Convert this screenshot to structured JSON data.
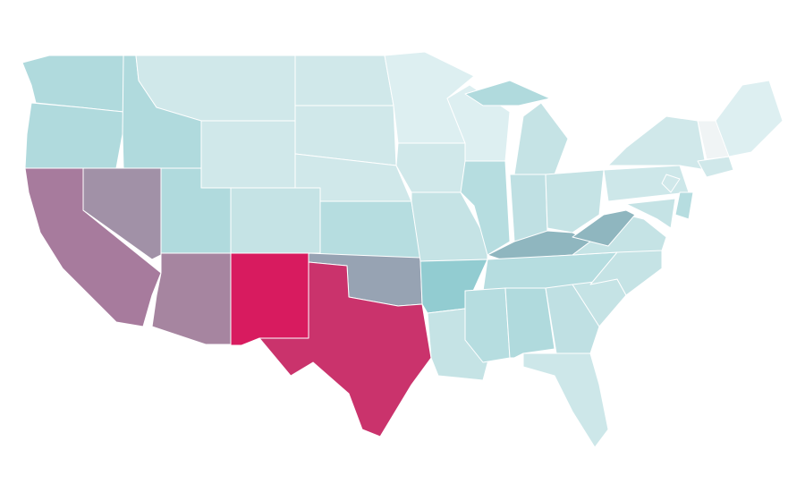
{
  "map": {
    "background": "#ffffff",
    "border": "#ffffff",
    "fills": [
      "#b0dadd",
      "#b0dadd",
      "#a77b9d",
      "#a191a7",
      "#b0dadd",
      "#d0e8ea",
      "#d0e8ea",
      "#b0dadd",
      "#a685a0",
      "#c5e3e5",
      "#d81b5f",
      "#d0e8ea",
      "#d0e8ea",
      "#d0e8ea",
      "#b6dde0",
      "#97a3b3",
      "#ca336c",
      "#ddeff1",
      "#d0e8ea",
      "#c5e3e5",
      "#92ccd1",
      "#c5e3e5",
      "#ddeff1",
      "#b6dde0",
      "#c5e3e5",
      "#b0dadd",
      "#bfe0e3",
      "#c5e3e5",
      "#8fb6bf",
      "#b6dde0",
      "#b6dde0",
      "#b0dadd",
      "#bfe0e3",
      "#cde7e9",
      "#c5e3e5",
      "#c5e3e5",
      "#c5e3e5",
      "#8fb6bf",
      "#cde7e9",
      "#d0e8ea",
      "#ddeff1",
      "#d0e8ea",
      "#c5e3e5",
      "#b6dde0",
      "#d0e8ea",
      "#f0f4f5"
    ]
  }
}
